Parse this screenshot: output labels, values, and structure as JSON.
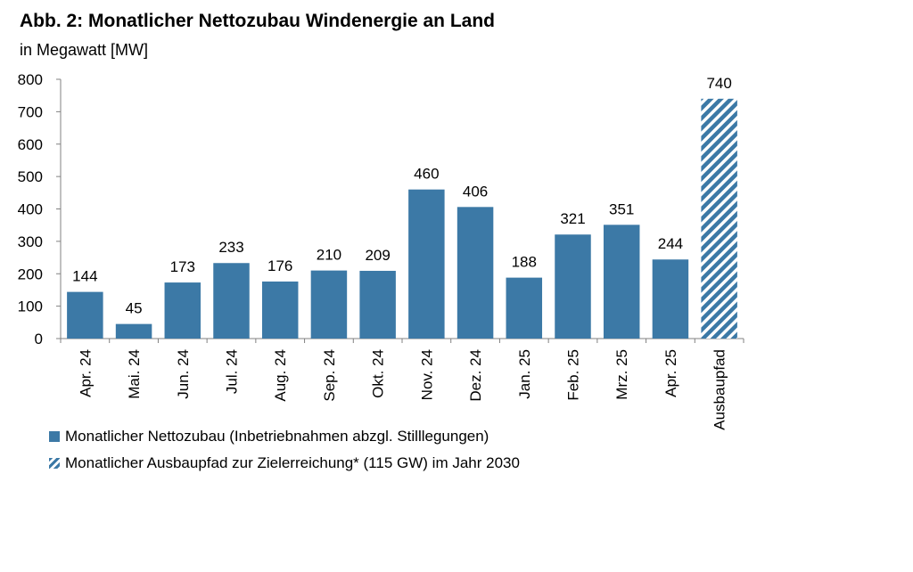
{
  "chart_data": {
    "type": "bar",
    "title": "Abb. 2: Monatlicher Nettozubau Windenergie an Land",
    "ylabel": "in Megawatt [MW]",
    "xlabel": "",
    "ylim": [
      0,
      800
    ],
    "yticks": [
      0,
      100,
      200,
      300,
      400,
      500,
      600,
      700,
      800
    ],
    "grid": false,
    "categories": [
      "Apr. 24",
      "Mai. 24",
      "Jun. 24",
      "Jul. 24",
      "Aug. 24",
      "Sep. 24",
      "Okt. 24",
      "Nov. 24",
      "Dez. 24",
      "Jan. 25",
      "Feb. 25",
      "Mrz. 25",
      "Apr. 25",
      "Ausbaupfad"
    ],
    "series": [
      {
        "name": "Monatlicher Nettozubau (Inbetriebnahmen abzgl. Stilllegungen)",
        "color": "#3c79a6",
        "pattern": "solid",
        "values": [
          144,
          45,
          173,
          233,
          176,
          210,
          209,
          460,
          406,
          188,
          321,
          351,
          244,
          null
        ]
      },
      {
        "name": "Monatlicher Ausbaupfad zur Zielerreichung* (115 GW) im Jahr 2030",
        "color": "#3c79a6",
        "pattern": "hatched",
        "values": [
          null,
          null,
          null,
          null,
          null,
          null,
          null,
          null,
          null,
          null,
          null,
          null,
          null,
          740
        ]
      }
    ],
    "legend_position": "bottom-left"
  }
}
